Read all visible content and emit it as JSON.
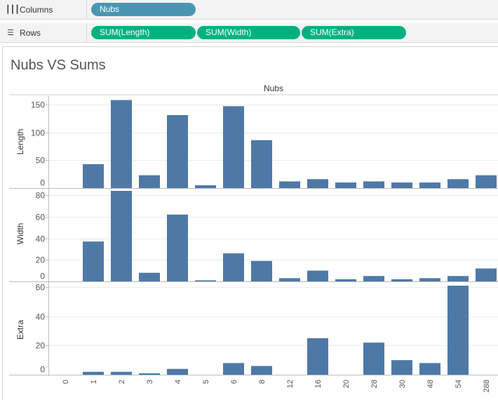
{
  "shelves": {
    "columns": {
      "label": "Columns",
      "icon": "columns-icon",
      "pills": [
        "Nubs"
      ]
    },
    "rows": {
      "label": "Rows",
      "icon": "rows-icon",
      "pills": [
        "SUM(Length)",
        "SUM(Width)",
        "SUM(Extra)"
      ]
    }
  },
  "colors": {
    "bar": "#4e79a7",
    "dimension_pill": "#4996b2",
    "measure_pill": "#00b180"
  },
  "chart_data": {
    "type": "bar",
    "title": "Nubs VS Sums",
    "xlabel": "Nubs",
    "categories": [
      "0",
      "1",
      "2",
      "3",
      "4",
      "5",
      "6",
      "8",
      "12",
      "16",
      "20",
      "28",
      "30",
      "48",
      "54",
      "288"
    ],
    "series": [
      {
        "name": "Length",
        "values": [
          0,
          43,
          158,
          23,
          131,
          5,
          147,
          86,
          12,
          16,
          10,
          12,
          10,
          10,
          16,
          23
        ],
        "ylim": [
          0,
          165
        ],
        "ticks": [
          0,
          50,
          100,
          150
        ]
      },
      {
        "name": "Width",
        "values": [
          0,
          37,
          84,
          8,
          62,
          1,
          26,
          19,
          3,
          10,
          2,
          5,
          2,
          3,
          5,
          12
        ],
        "ylim": [
          0,
          84
        ],
        "ticks": [
          0,
          20,
          40,
          60,
          80
        ]
      },
      {
        "name": "Extra",
        "values": [
          0,
          2,
          2,
          1,
          4,
          0,
          8,
          6,
          0,
          25,
          0,
          22,
          10,
          8,
          61,
          0
        ],
        "ylim": [
          0,
          62
        ],
        "ticks": [
          0,
          20,
          40,
          60
        ]
      }
    ]
  }
}
